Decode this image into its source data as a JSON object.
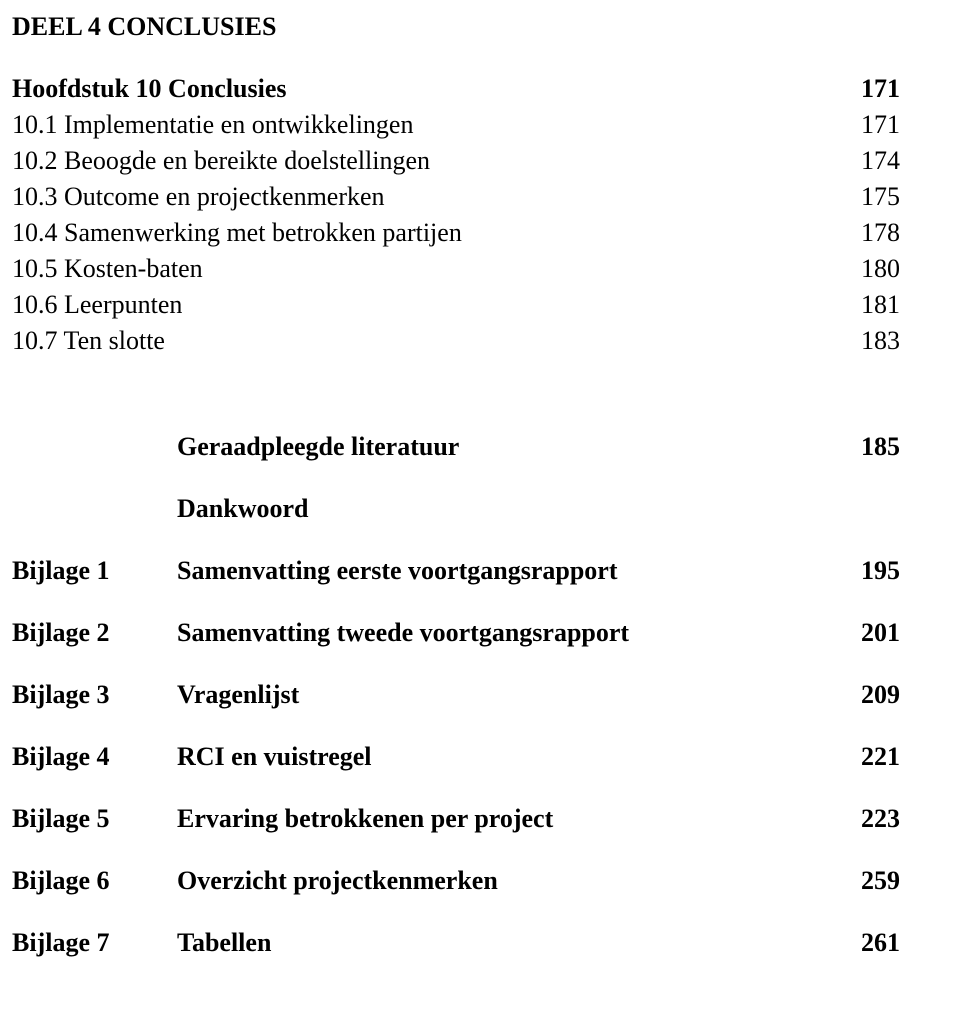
{
  "part_title": "DEEL 4 CONCLUSIES",
  "chapter": {
    "label": "Hoofdstuk 10  Conclusies",
    "page": "171"
  },
  "sections": [
    {
      "label": "10.1 Implementatie en ontwikkelingen",
      "page": "171"
    },
    {
      "label": "10.2 Beoogde en bereikte doelstellingen",
      "page": "174"
    },
    {
      "label": "10.3 Outcome en projectkenmerken",
      "page": "175"
    },
    {
      "label": "10.4 Samenwerking met betrokken partijen",
      "page": "178"
    },
    {
      "label": "10.5 Kosten-baten",
      "page": "180"
    },
    {
      "label": "10.6 Leerpunten",
      "page": "181"
    },
    {
      "label": "10.7 Ten slotte",
      "page": "183"
    }
  ],
  "literatuur": {
    "label": "Geraadpleegde literatuur",
    "page": "185"
  },
  "dankwoord": {
    "label": "Dankwoord"
  },
  "bijlagen": [
    {
      "col1": "Bijlage 1",
      "col2": "Samenvatting eerste voortgangsrapport",
      "page": "195"
    },
    {
      "col1": "Bijlage 2",
      "col2": "Samenvatting tweede voortgangsrapport",
      "page": "201"
    },
    {
      "col1": "Bijlage 3",
      "col2": "Vragenlijst",
      "page": "209"
    },
    {
      "col1": "Bijlage 4",
      "col2": "RCI en vuistregel",
      "page": "221"
    },
    {
      "col1": "Bijlage 5",
      "col2": "Ervaring betrokkenen per project",
      "page": "223"
    },
    {
      "col1": "Bijlage 6",
      "col2": "Overzicht projectkenmerken",
      "page": "259"
    },
    {
      "col1": "Bijlage 7",
      "col2": "Tabellen",
      "page": "261"
    }
  ]
}
